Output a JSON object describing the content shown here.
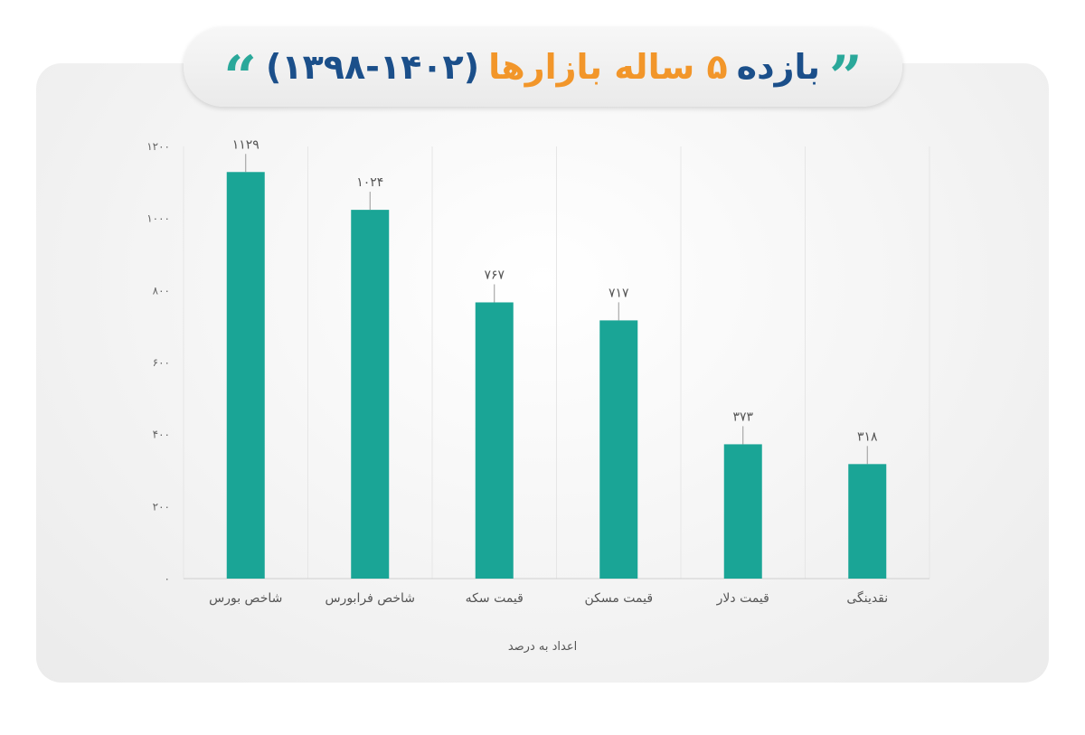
{
  "title": {
    "part1": "بازده",
    "part2": "۵ ساله بازارها",
    "part3": "(۱۳۹۸-۱۴۰۲)",
    "colors": {
      "dark": "#1b4f8a",
      "orange": "#f2962a",
      "quote": "#2aa89a"
    }
  },
  "chart_data": {
    "type": "bar",
    "title": "بازده ۵ ساله بازارها (۱۳۹۸-۱۴۰۲)",
    "categories": [
      "شاخص بورس",
      "شاخص فرابورس",
      "قیمت سکه",
      "قیمت مسکن",
      "قیمت دلار",
      "نقدینگی"
    ],
    "values": [
      1129,
      1024,
      767,
      717,
      373,
      318
    ],
    "value_labels": [
      "۱۱۲۹",
      "۱۰۲۴",
      "۷۶۷",
      "۷۱۷",
      "۳۷۳",
      "۳۱۸"
    ],
    "yticks": [
      0,
      200,
      400,
      600,
      800,
      1000,
      1200
    ],
    "ytick_labels": [
      "۰",
      "۲۰۰",
      "۴۰۰",
      "۶۰۰",
      "۸۰۰",
      "۱۰۰۰",
      "۱۲۰۰"
    ],
    "ylim": [
      0,
      1200
    ],
    "bar_color": "#1aa596",
    "grid": "vertical category separators",
    "note": "اعداد به درصد"
  }
}
